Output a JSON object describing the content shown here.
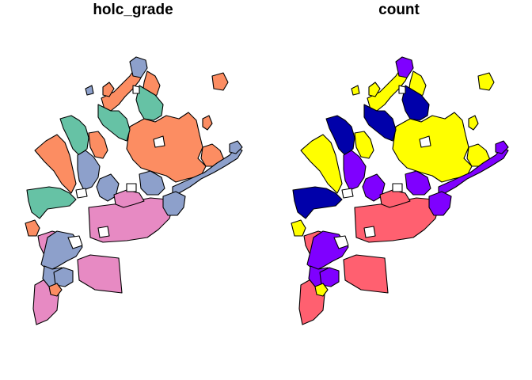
{
  "panels": [
    {
      "title": "holc_grade",
      "variable": "holc_grade"
    },
    {
      "title": "count",
      "variable": "count"
    }
  ],
  "colors": {
    "holc_grade": {
      "A": "#66C2A5",
      "B": "#FC8D62",
      "C": "#8DA0CB",
      "D": "#E78AC3",
      "hole": "#FFFFFF"
    },
    "count": {
      "blue": "#0000AA",
      "purple": "#7F00FF",
      "pinkred": "#FF6070",
      "yellow": "#FFFF00",
      "hole": "#FFFFFF"
    }
  }
}
